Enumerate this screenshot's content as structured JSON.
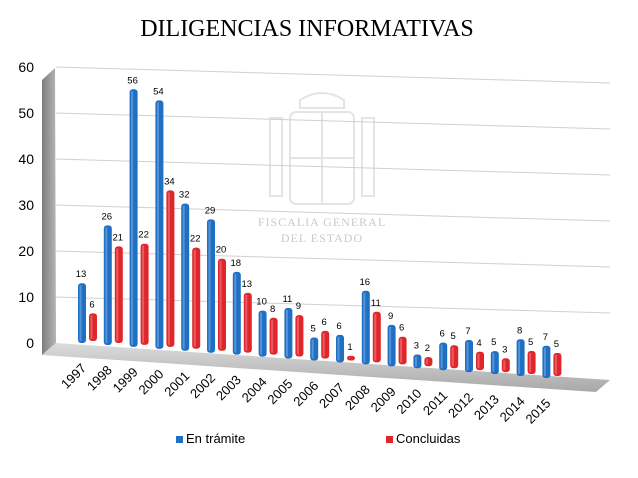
{
  "chart_data": {
    "type": "bar",
    "title": "DILIGENCIAS INFORMATIVAS",
    "categories": [
      "1997",
      "1998",
      "1999",
      "2000",
      "2001",
      "2002",
      "2003",
      "2004",
      "2005",
      "2006",
      "2007",
      "2008",
      "2009",
      "2010",
      "2011",
      "2012",
      "2013",
      "2014",
      "2015"
    ],
    "series": [
      {
        "name": "En trámite",
        "color": "#1f6fc4",
        "values": [
          13,
          26,
          56,
          54,
          32,
          29,
          18,
          10,
          11,
          5,
          6,
          16,
          9,
          3,
          6,
          7,
          5,
          8,
          7
        ]
      },
      {
        "name": "Concluidas",
        "color": "#e0262b",
        "values": [
          6,
          21,
          22,
          34,
          22,
          20,
          13,
          8,
          9,
          6,
          1,
          11,
          6,
          2,
          5,
          4,
          3,
          5,
          5
        ]
      }
    ],
    "yticks": [
      "0",
      "10",
      "20",
      "30",
      "40",
      "50",
      "60"
    ],
    "ylim": [
      0,
      60
    ],
    "grid": true,
    "legend_position": "bottom",
    "watermark": {
      "line1": "FISCALIA GENERAL",
      "line2": "DEL ESTADO"
    }
  }
}
